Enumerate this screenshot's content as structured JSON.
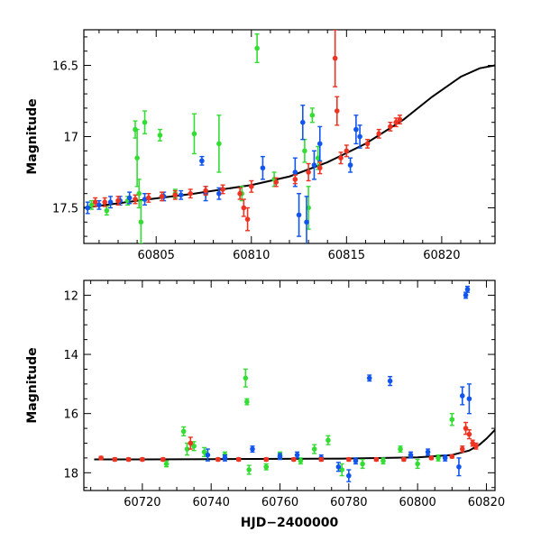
{
  "colors": {
    "g": "#33dd33",
    "b": "#1155ee",
    "r": "#ee3322",
    "model": "#000000"
  },
  "chart_data": [
    {
      "id": "top",
      "type": "scatter",
      "ylabel": "Magnitude",
      "xlabel": "",
      "xlim": [
        60801.2,
        60822.8
      ],
      "ylim": [
        17.75,
        16.25
      ],
      "y_inverted": true,
      "x_ticks": [
        60805,
        60810,
        60815,
        60820
      ],
      "x_tick_labels": [
        "60805",
        "60810",
        "60815",
        "60820"
      ],
      "y_ticks": [
        16.5,
        17,
        17.5
      ],
      "y_tick_labels": [
        "16.5",
        "17",
        "17.5"
      ],
      "model_curve": {
        "x": [
          60801.2,
          60804,
          60807,
          60810,
          60812,
          60814,
          60816,
          60818,
          60819.5,
          60821,
          60822,
          60822.8
        ],
        "y": [
          17.5,
          17.45,
          17.4,
          17.34,
          17.28,
          17.18,
          17.05,
          16.88,
          16.72,
          16.58,
          16.52,
          16.5
        ]
      },
      "series": [
        {
          "color_key": "g",
          "x": [
            60801.6,
            60802.4,
            60803.5,
            60803.9,
            60804.0,
            60804.1,
            60804.2,
            60804.4,
            60805.2,
            60806.0,
            60807.0,
            60808.3,
            60809.5,
            60810.3,
            60811.2,
            60812.8,
            60813.0,
            60813.2,
            60813.5
          ],
          "y": [
            17.48,
            17.52,
            17.45,
            16.95,
            17.15,
            17.4,
            17.6,
            16.9,
            16.99,
            17.4,
            16.98,
            17.05,
            17.4,
            16.38,
            17.3,
            17.1,
            17.5,
            16.85,
            17.15
          ],
          "err": [
            0.03,
            0.03,
            0.03,
            0.06,
            0.2,
            0.1,
            0.15,
            0.08,
            0.04,
            0.03,
            0.14,
            0.2,
            0.05,
            0.1,
            0.05,
            0.08,
            0.15,
            0.05,
            0.08
          ]
        },
        {
          "color_key": "b",
          "x": [
            60801.4,
            60802.0,
            60802.6,
            60803.1,
            60803.6,
            60804.4,
            60805.4,
            60806.3,
            60807.4,
            60807.6,
            60808.3,
            60810.6,
            60812.3,
            60812.5,
            60812.7,
            60812.9,
            60813.3,
            60813.6,
            60815.2,
            60815.5,
            60815.7
          ],
          "y": [
            17.5,
            17.48,
            17.46,
            17.45,
            17.43,
            17.44,
            17.42,
            17.41,
            17.17,
            17.4,
            17.4,
            17.22,
            17.25,
            17.55,
            16.9,
            17.6,
            17.2,
            17.05,
            17.2,
            16.95,
            17.0
          ],
          "err": [
            0.04,
            0.03,
            0.04,
            0.03,
            0.04,
            0.04,
            0.03,
            0.03,
            0.03,
            0.05,
            0.04,
            0.08,
            0.1,
            0.15,
            0.12,
            0.18,
            0.1,
            0.12,
            0.05,
            0.1,
            0.08
          ]
        },
        {
          "color_key": "r",
          "x": [
            60801.8,
            60802.3,
            60803.0,
            60803.9,
            60804.6,
            60805.3,
            60806.0,
            60806.8,
            60807.6,
            60808.5,
            60809.4,
            60809.6,
            60809.8,
            60810.0,
            60811.3,
            60812.3,
            60813.0,
            60813.6,
            60814.4,
            60814.5,
            60814.7,
            60815.0,
            60816.1,
            60816.7,
            60817.3,
            60817.6,
            60817.8
          ],
          "y": [
            17.46,
            17.46,
            17.45,
            17.44,
            17.43,
            17.42,
            17.41,
            17.4,
            17.38,
            17.37,
            17.4,
            17.5,
            17.58,
            17.35,
            17.32,
            17.3,
            17.25,
            17.22,
            16.45,
            16.82,
            17.15,
            17.1,
            17.05,
            16.98,
            16.93,
            16.9,
            16.88
          ],
          "err": [
            0.03,
            0.03,
            0.03,
            0.03,
            0.03,
            0.03,
            0.03,
            0.03,
            0.03,
            0.03,
            0.04,
            0.06,
            0.08,
            0.04,
            0.03,
            0.03,
            0.06,
            0.04,
            0.2,
            0.1,
            0.04,
            0.04,
            0.03,
            0.03,
            0.03,
            0.03,
            0.03
          ]
        }
      ]
    },
    {
      "id": "bottom",
      "type": "scatter",
      "ylabel": "Magnitude",
      "xlabel": "HJD−2400000",
      "xlim": [
        60703,
        60822.5
      ],
      "ylim": [
        18.6,
        11.5
      ],
      "y_inverted": true,
      "x_ticks": [
        60720,
        60740,
        60760,
        60780,
        60800,
        60820
      ],
      "x_tick_labels": [
        "60720",
        "60740",
        "60760",
        "60780",
        "60800",
        "60820"
      ],
      "y_ticks": [
        12,
        14,
        16,
        18
      ],
      "y_tick_labels": [
        "12",
        "14",
        "16",
        "18"
      ],
      "model_curve": {
        "x": [
          60706,
          60720,
          60740,
          60760,
          60780,
          60800,
          60810,
          60815,
          60818,
          60820,
          60822.5
        ],
        "y": [
          17.55,
          17.55,
          17.54,
          17.53,
          17.52,
          17.48,
          17.4,
          17.25,
          17.05,
          16.85,
          16.55
        ]
      },
      "series": [
        {
          "color_key": "g",
          "x": [
            60727,
            60732,
            60733,
            60735,
            60738,
            60744,
            60750,
            60750.4,
            60751,
            60756,
            60760,
            60766,
            60770,
            60774,
            60778,
            60784,
            60790,
            60795,
            60800,
            60806,
            60810
          ],
          "y": [
            17.7,
            16.6,
            17.2,
            17.1,
            17.3,
            17.4,
            14.8,
            15.6,
            17.9,
            17.8,
            17.4,
            17.6,
            17.2,
            16.9,
            17.9,
            17.7,
            17.6,
            17.2,
            17.7,
            17.5,
            16.2
          ],
          "err": [
            0.1,
            0.15,
            0.2,
            0.15,
            0.15,
            0.1,
            0.3,
            0.1,
            0.15,
            0.1,
            0.1,
            0.1,
            0.15,
            0.15,
            0.2,
            0.15,
            0.1,
            0.1,
            0.15,
            0.1,
            0.2
          ]
        },
        {
          "color_key": "b",
          "x": [
            60739,
            60744,
            60752,
            60760,
            60765,
            60772,
            60777,
            60780,
            60782,
            60786,
            60792,
            60798,
            60803,
            60808,
            60812,
            60813,
            60814,
            60814.5,
            60815
          ],
          "y": [
            17.4,
            17.5,
            17.2,
            17.45,
            17.4,
            17.5,
            17.8,
            18.1,
            17.6,
            14.8,
            14.9,
            17.4,
            17.3,
            17.5,
            17.8,
            15.4,
            12.0,
            11.8,
            15.5
          ],
          "err": [
            0.2,
            0.1,
            0.1,
            0.1,
            0.1,
            0.1,
            0.15,
            0.2,
            0.1,
            0.1,
            0.15,
            0.1,
            0.1,
            0.1,
            0.3,
            0.3,
            0.1,
            0.1,
            0.5
          ]
        },
        {
          "color_key": "r",
          "x": [
            60708,
            60712,
            60716,
            60720,
            60726,
            60734,
            60742,
            60748,
            60756,
            60764,
            60772,
            60780,
            60788,
            60796,
            60804,
            60810,
            60813,
            60814,
            60815,
            60816,
            60817
          ],
          "y": [
            17.5,
            17.55,
            17.55,
            17.55,
            17.55,
            17.0,
            17.55,
            17.55,
            17.55,
            17.55,
            17.55,
            17.55,
            17.55,
            17.55,
            17.5,
            17.45,
            17.2,
            16.5,
            16.7,
            17.0,
            17.1
          ],
          "err": [
            0.05,
            0.05,
            0.05,
            0.05,
            0.05,
            0.2,
            0.05,
            0.05,
            0.05,
            0.05,
            0.05,
            0.05,
            0.05,
            0.05,
            0.05,
            0.05,
            0.1,
            0.2,
            0.15,
            0.1,
            0.1
          ]
        }
      ]
    }
  ]
}
